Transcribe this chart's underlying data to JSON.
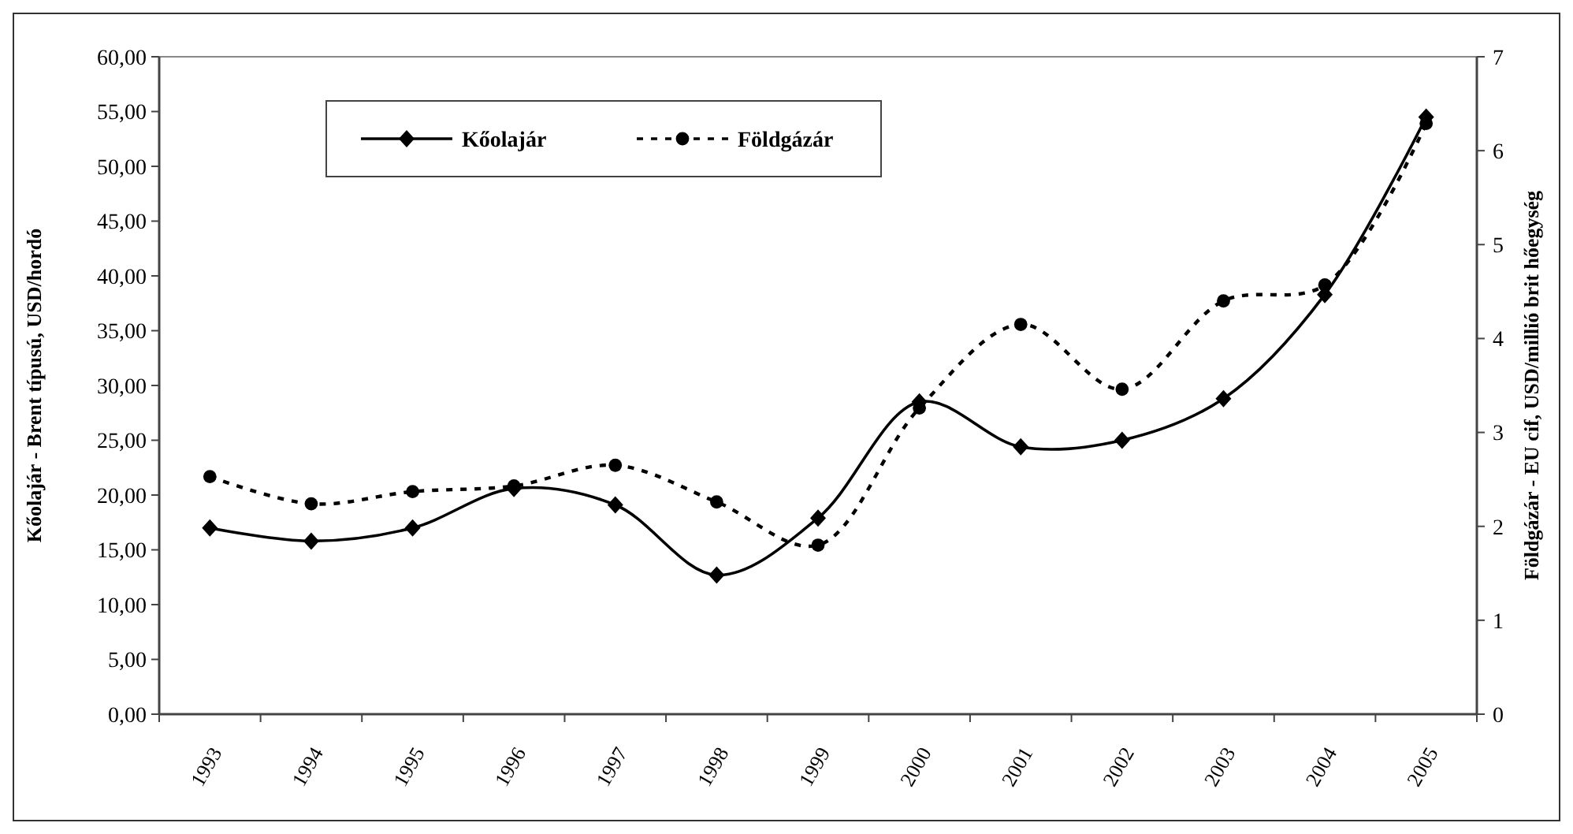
{
  "chart_data": {
    "type": "line",
    "categories": [
      "1993",
      "1994",
      "1995",
      "1996",
      "1997",
      "1998",
      "1999",
      "2000",
      "2001",
      "2002",
      "2003",
      "2004",
      "2005"
    ],
    "series": [
      {
        "name": "Kőolajár",
        "color": "#000000",
        "marker": "diamond",
        "line_style": "solid",
        "values": [
          17.0,
          15.8,
          17.0,
          20.6,
          19.1,
          12.7,
          17.9,
          28.5,
          24.4,
          25.0,
          28.8,
          38.3,
          54.5
        ]
      },
      {
        "name": "Földgázár",
        "color": "#000000",
        "marker": "circle",
        "line_style": "dashed",
        "axis": "y2",
        "values": [
          2.53,
          2.24,
          2.37,
          2.43,
          2.65,
          2.26,
          1.8,
          3.26,
          4.15,
          3.46,
          4.4,
          4.57,
          6.29
        ]
      }
    ],
    "ylabel": "Kőolajár - Brent típusú, USD/hordó",
    "y2label": "Földgázár - EU cif, USD/millió brit hőegység",
    "ylim": [
      0,
      60
    ],
    "yticks": [
      {
        "value": 0,
        "label": "0,00"
      },
      {
        "value": 5,
        "label": "5,00"
      },
      {
        "value": 10,
        "label": "10,00"
      },
      {
        "value": 15,
        "label": "15,00"
      },
      {
        "value": 20,
        "label": "20,00"
      },
      {
        "value": 25,
        "label": "25,00"
      },
      {
        "value": 30,
        "label": "30,00"
      },
      {
        "value": 35,
        "label": "35,00"
      },
      {
        "value": 40,
        "label": "40,00"
      },
      {
        "value": 45,
        "label": "45,00"
      },
      {
        "value": 50,
        "label": "50,00"
      },
      {
        "value": 55,
        "label": "55,00"
      },
      {
        "value": 60,
        "label": "60,00"
      }
    ],
    "y2lim": [
      0,
      7
    ],
    "y2ticks": [
      0,
      1,
      2,
      3,
      4,
      5,
      6,
      7
    ],
    "grid": false,
    "legend": "top left"
  }
}
